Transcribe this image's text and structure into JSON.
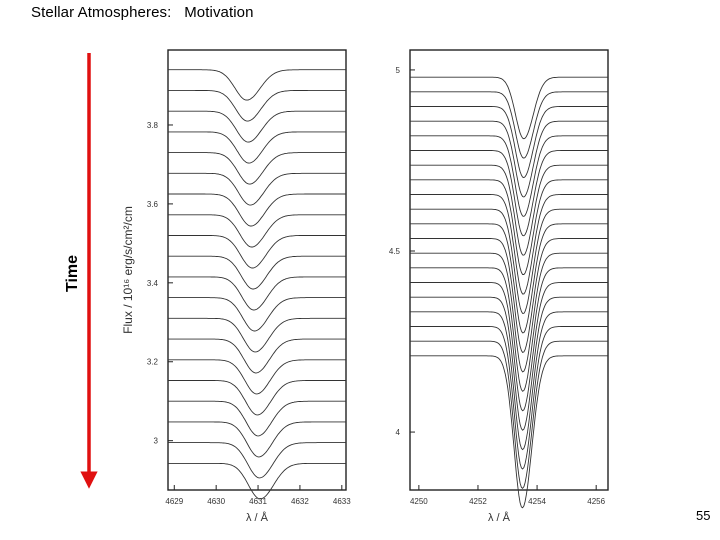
{
  "slide": {
    "title": "Stellar Atmospheres:   Motivation",
    "page_number": "55",
    "time_label": "Time"
  },
  "colors": {
    "arrow": "#e01010",
    "frame": "#222222",
    "curve": "#333333"
  },
  "chart_data": [
    {
      "type": "line",
      "panel": "left",
      "xlabel": "λ / Å",
      "ylabel": "Flux  / 10¹⁶ erg/s/cm²/cm",
      "xlim": [
        4628.85,
        4633.1
      ],
      "ylim": [
        2.875,
        3.99
      ],
      "xticks": [
        "4629",
        "4630",
        "4631",
        "4632",
        "4633"
      ],
      "xtick_values": [
        4629,
        4630,
        4631,
        4632,
        4633
      ],
      "yticks": [
        "3",
        "3.2",
        "3.4",
        "3.6",
        "3.8"
      ],
      "ytick_values": [
        3.0,
        3.2,
        3.4,
        3.6,
        3.8
      ],
      "n_spectra": 20,
      "continuum_top": 3.94,
      "continuum_step": 0.0525,
      "line_center_start": 4630.73,
      "line_center_end": 4631.05,
      "line_depth_start": 0.077,
      "line_depth_end": 0.09,
      "line_width": 0.28
    },
    {
      "type": "line",
      "panel": "right",
      "xlabel": "λ / Å",
      "ylabel": "",
      "xlim": [
        4249.7,
        4256.4
      ],
      "ylim": [
        3.84,
        5.055
      ],
      "xticks": [
        "4250",
        "4252",
        "4254",
        "4256"
      ],
      "xtick_values": [
        4250,
        4252,
        4254,
        4256
      ],
      "yticks": [
        "4",
        "4.5",
        "5"
      ],
      "ytick_values": [
        4.0,
        4.5,
        5.0
      ],
      "n_spectra": 20,
      "continuum_top": 4.98,
      "continuum_step": 0.0405,
      "line_center_start": 4253.55,
      "line_center_end": 4253.5,
      "line_depth_start": 0.17,
      "line_depth_end": 0.42,
      "line_width": 0.28
    }
  ]
}
